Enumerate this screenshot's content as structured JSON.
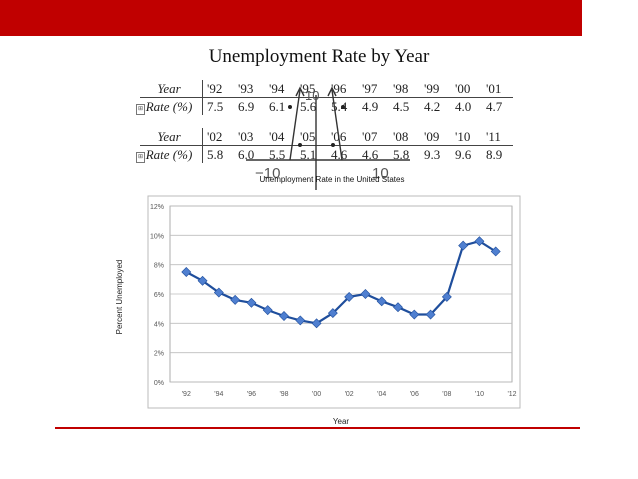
{
  "slide": {
    "title": "Unemployment Rate by Year",
    "accent_color": "#c00000"
  },
  "table": {
    "row_header_year": "Year",
    "row_header_rate": "Rate (%)",
    "block1": {
      "years": [
        "'92",
        "'93",
        "'94",
        "'95",
        "'96",
        "'97",
        "'98",
        "'99",
        "'00",
        "'01"
      ],
      "rates": [
        "7.5",
        "6.9",
        "6.1",
        "5.6",
        "5.4",
        "4.9",
        "4.5",
        "4.2",
        "4.0",
        "4.7"
      ]
    },
    "block2": {
      "years": [
        "'02",
        "'03",
        "'04",
        "'05",
        "'06",
        "'07",
        "'08",
        "'09",
        "'10",
        "'11"
      ],
      "rates": [
        "5.8",
        "6.0",
        "5.5",
        "5.1",
        "4.6",
        "4.6",
        "5.8",
        "9.3",
        "9.6",
        "8.9"
      ]
    }
  },
  "chart_data": {
    "type": "line",
    "title": "Unemployment Rate in the United States",
    "xlabel": "Year",
    "ylabel": "Percent Unemployed",
    "x": [
      1992,
      1993,
      1994,
      1995,
      1996,
      1997,
      1998,
      1999,
      2000,
      2001,
      2002,
      2003,
      2004,
      2005,
      2006,
      2007,
      2008,
      2009,
      2010,
      2011
    ],
    "values": [
      7.5,
      6.9,
      6.1,
      5.6,
      5.4,
      4.9,
      4.5,
      4.2,
      4.0,
      4.7,
      5.8,
      6.0,
      5.5,
      5.1,
      4.6,
      4.6,
      5.8,
      9.3,
      9.6,
      8.9
    ],
    "xlim": [
      1991,
      2012
    ],
    "ylim": [
      0,
      12
    ],
    "x_ticks": [
      "'92",
      "'94",
      "'96",
      "'98",
      "'00",
      "'02",
      "'04",
      "'06",
      "'08",
      "'10",
      "'12"
    ],
    "x_tick_values": [
      1992,
      1994,
      1996,
      1998,
      2000,
      2002,
      2004,
      2006,
      2008,
      2010,
      2012
    ],
    "y_ticks": [
      "0%",
      "2%",
      "4%",
      "6%",
      "8%",
      "10%",
      "12%"
    ],
    "y_tick_values": [
      0,
      2,
      4,
      6,
      8,
      10,
      12
    ],
    "grid": true,
    "legend": "none",
    "line_color": "#1f4e9c",
    "marker_color": "#4f7fd0"
  },
  "overlay": {
    "axis_label_left": "−10",
    "axis_label_right": "10",
    "axis_label_top": "10"
  }
}
